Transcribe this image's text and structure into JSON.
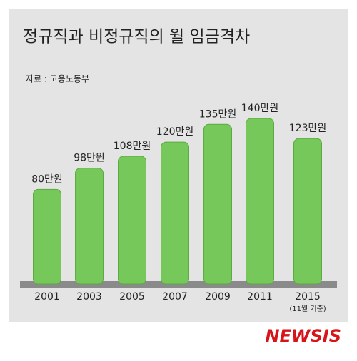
{
  "chart_data": {
    "type": "bar",
    "title": "정규직과 비정규직의 월 임금격차",
    "subtitle": "자료 : 고용노동부",
    "categories": [
      "2001",
      "2003",
      "2005",
      "2007",
      "2009",
      "2011",
      "2015"
    ],
    "values": [
      80,
      98,
      108,
      120,
      135,
      140,
      123
    ],
    "value_labels": [
      "80만원",
      "98만원",
      "108만원",
      "120만원",
      "135만원",
      "140만원",
      "123만원"
    ],
    "color": "#76c85a",
    "annotation": "(11월 기준)",
    "credit": "NEWSIS"
  }
}
